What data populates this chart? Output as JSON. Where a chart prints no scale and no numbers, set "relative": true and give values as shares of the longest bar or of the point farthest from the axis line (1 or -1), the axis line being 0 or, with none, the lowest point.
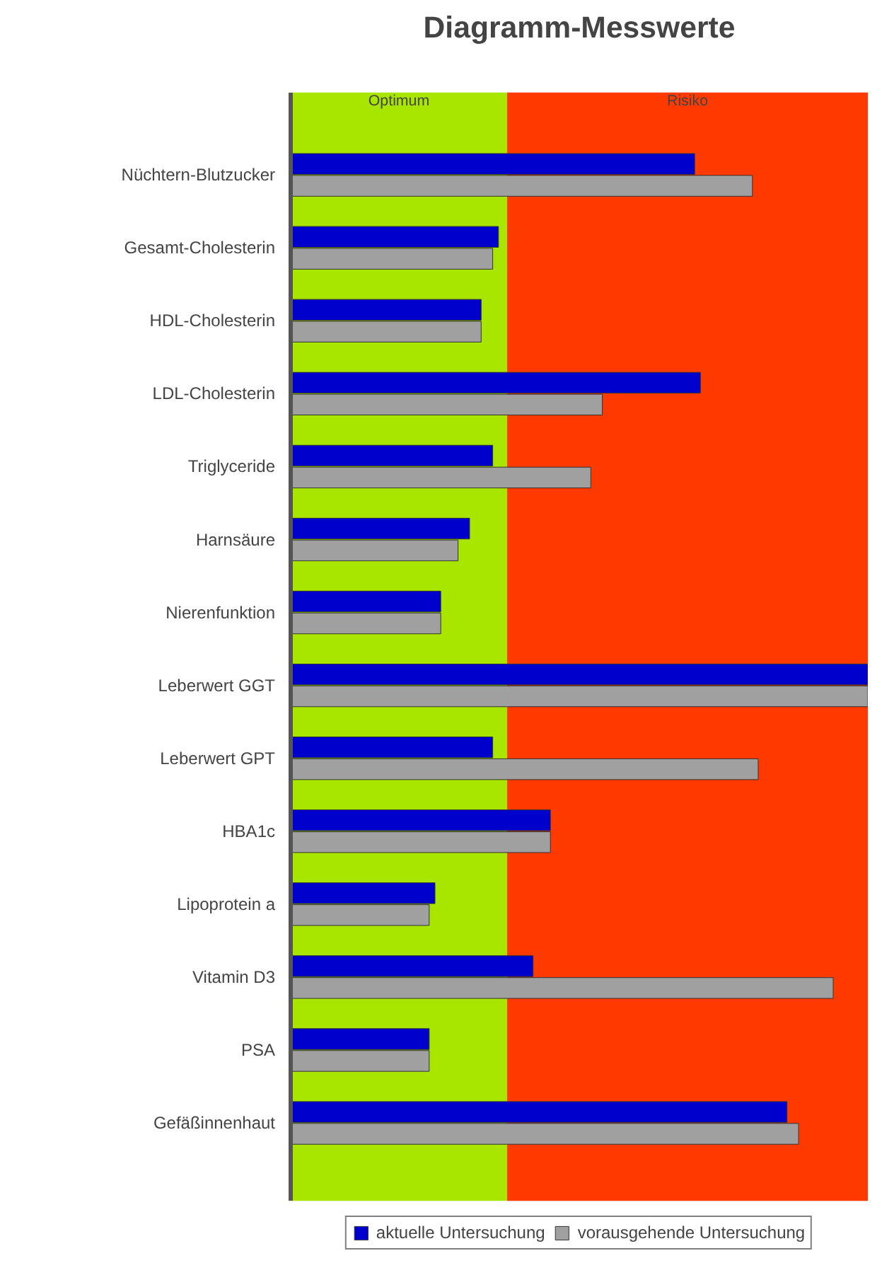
{
  "chart_data": {
    "type": "bar",
    "orientation": "horizontal",
    "relative": true,
    "title": "Diagramm-Messwerte",
    "categories": [
      "Nüchtern-Blutzucker",
      "Gesamt-Cholesterin",
      "HDL-Cholesterin",
      "LDL-Cholesterin",
      "Triglyceride",
      "Harnsäure",
      "Nierenfunktion",
      "Leberwert GGT",
      "Leberwert GPT",
      "HBA1c",
      "Lipoprotein a",
      "Vitamin D3",
      "PSA",
      "Gefäßinnenhaut"
    ],
    "series": [
      {
        "name": "aktuelle Untersuchung",
        "color": "#0000cc",
        "values": [
          0.7,
          0.36,
          0.33,
          0.71,
          0.35,
          0.31,
          0.26,
          1,
          0.35,
          0.45,
          0.25,
          0.42,
          0.24,
          0.86
        ]
      },
      {
        "name": "vorausgehende Untersuchung",
        "color": "#a0a0a0",
        "values": [
          0.8,
          0.35,
          0.33,
          0.54,
          0.52,
          0.29,
          0.26,
          1,
          0.81,
          0.45,
          0.24,
          0.94,
          0.24,
          0.88
        ]
      }
    ],
    "bands": [
      {
        "axis": "x",
        "from": 0,
        "to": 0.375,
        "label": "Optimum",
        "color": "#a8e600"
      },
      {
        "axis": "x",
        "from": 0.375,
        "to": 1,
        "label": "Risiko",
        "color": "#ff3a00"
      }
    ],
    "legend": "bottom"
  }
}
